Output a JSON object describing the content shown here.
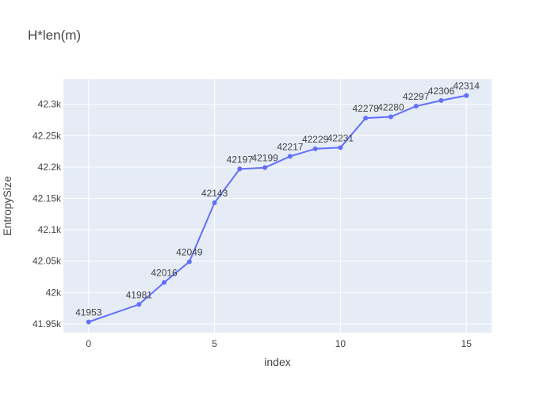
{
  "chart_data": {
    "type": "line",
    "title": "H*len(m)",
    "xlabel": "index",
    "ylabel": "EntropySize",
    "x": [
      0,
      2,
      3,
      4,
      5,
      6,
      7,
      8,
      9,
      10,
      11,
      12,
      13,
      14,
      15
    ],
    "series": [
      {
        "values": [
          41953,
          41981,
          42016,
          42049,
          42143,
          42197,
          42199,
          42217,
          42229,
          42231,
          42278,
          42280,
          42297,
          42306,
          42314
        ],
        "labels": [
          "41953",
          "41981",
          "42016",
          "42049",
          "42143",
          "42197",
          "42199",
          "42217",
          "42229",
          "42231",
          "42278",
          "42280",
          "42297",
          "42306",
          "42314"
        ],
        "mode": "lines+markers+text",
        "color": "#636efa"
      }
    ],
    "xlim": [
      -1,
      16
    ],
    "ylim": [
      41936,
      42340
    ],
    "x_ticks": [
      0,
      5,
      10,
      15
    ],
    "x_tick_labels": [
      "0",
      "5",
      "10",
      "15"
    ],
    "y_ticks": [
      41950,
      42000,
      42050,
      42100,
      42150,
      42200,
      42250,
      42300
    ],
    "y_tick_labels": [
      "41.95k",
      "42k",
      "42.05k",
      "42.1k",
      "42.15k",
      "42.2k",
      "42.25k",
      "42.3k"
    ],
    "grid": true,
    "plot_background": "#e5ecf6",
    "grid_color": "#ffffff"
  }
}
